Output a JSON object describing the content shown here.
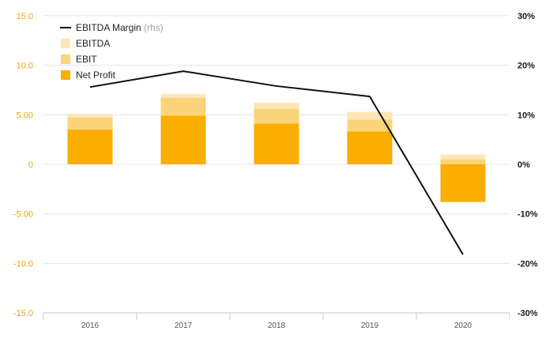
{
  "colors": {
    "net_profit": "#F9AE00",
    "ebit": "#FBD47A",
    "ebitda": "#FDE7B6",
    "line": "#111111",
    "left_axis_text": "#F0A500",
    "right_axis_text": "#1a1a1a",
    "grid": "#e6e6e6",
    "x_axis_text": "#555555",
    "legend_text": "#222222",
    "legend_muted": "#a0a0a0"
  },
  "chart_data": {
    "type": "bar",
    "stacked": true,
    "categories": [
      "2016",
      "2017",
      "2018",
      "2019",
      "2020"
    ],
    "series": [
      {
        "name": "Net Profit",
        "key": "net_profit",
        "values": [
          3.5,
          4.9,
          4.1,
          3.3,
          -3.8
        ]
      },
      {
        "name": "EBIT",
        "key": "ebit",
        "values": [
          4.7,
          6.7,
          5.6,
          4.5,
          0.5
        ]
      },
      {
        "name": "EBITDA",
        "key": "ebitda",
        "values": [
          5.1,
          7.1,
          6.2,
          5.3,
          1.0
        ]
      }
    ],
    "line_series": {
      "name": "EBITDA Margin",
      "name_suffix": "(rhs)",
      "axis": "right",
      "values": [
        15.6,
        18.8,
        15.8,
        13.7,
        -18.2
      ]
    },
    "y_left": {
      "min": -15,
      "max": 15,
      "ticks": [
        15,
        10,
        5,
        0,
        -5,
        -10,
        -15
      ],
      "tick_labels": [
        "15.0",
        "10.0",
        "5.00",
        "0",
        "-5.00",
        "-10.0",
        "-15.0"
      ]
    },
    "y_right": {
      "min": -30,
      "max": 30,
      "ticks": [
        30,
        20,
        10,
        0,
        -10,
        -20,
        -30
      ],
      "tick_labels": [
        "30%",
        "20%",
        "10%",
        "0%",
        "-10%",
        "-20%",
        "-30%"
      ]
    },
    "legend": [
      {
        "label": "EBITDA Margin",
        "suffix": "(rhs)",
        "kind": "line",
        "key": "line"
      },
      {
        "label": "EBITDA",
        "suffix": "",
        "kind": "box",
        "key": "ebitda"
      },
      {
        "label": "EBIT",
        "suffix": "",
        "kind": "box",
        "key": "ebit"
      },
      {
        "label": "Net Profit",
        "suffix": "",
        "kind": "box",
        "key": "net_profit"
      }
    ],
    "legend_position": "top-left",
    "grid": true
  }
}
